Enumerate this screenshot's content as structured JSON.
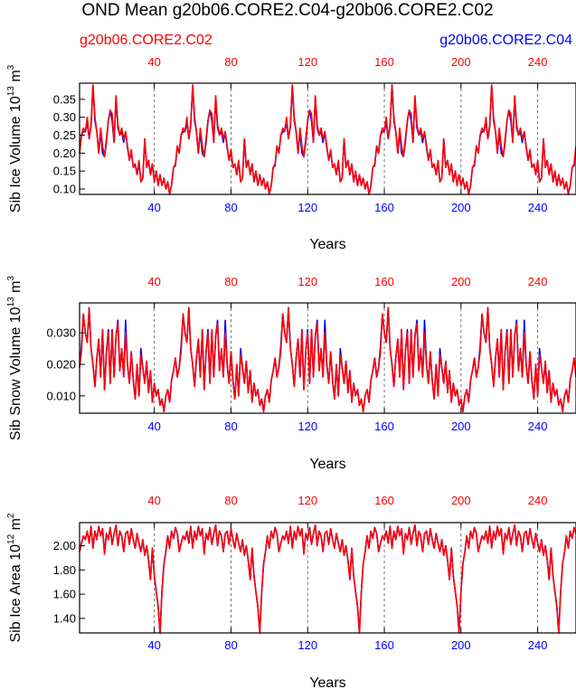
{
  "title": "OND Mean g20b06.CORE2.C04-g20b06.CORE2.C02",
  "legend": {
    "left": {
      "label": "g20b06.CORE2.C02",
      "color": "#ff0000"
    },
    "right": {
      "label": "g20b06.CORE2.C04",
      "color": "#0000ff"
    }
  },
  "chart_data": [
    {
      "type": "line",
      "ylabel_prefix": "Sib Ice Volume 10",
      "ylabel_exp": "13",
      "ylabel_unit": " m",
      "ylabel_unit_exp": "3",
      "xlabel": "Years",
      "xlim": [
        1,
        260
      ],
      "ylim": [
        0.085,
        0.395
      ],
      "yticks": [
        0.1,
        0.15,
        0.2,
        0.25,
        0.3,
        0.35
      ],
      "ytick_labels": [
        "0.10",
        "0.15",
        "0.20",
        "0.25",
        "0.30",
        "0.35"
      ],
      "xticks": [
        40,
        80,
        120,
        160,
        200,
        240
      ],
      "xtick_labels": [
        "40",
        "80",
        "120",
        "160",
        "200",
        "240"
      ],
      "grid_x": "dashed vertical at x ticks",
      "cycle": [
        0.2,
        0.25,
        0.27,
        0.26,
        0.3,
        0.24,
        0.28,
        0.39,
        0.3,
        0.26,
        0.2,
        0.27,
        0.22,
        0.19,
        0.24,
        0.29,
        0.32,
        0.31,
        0.23,
        0.36,
        0.28,
        0.25,
        0.27,
        0.24,
        0.26,
        0.22,
        0.18,
        0.21,
        0.16,
        0.17,
        0.14,
        0.18,
        0.12,
        0.13,
        0.24,
        0.16,
        0.18,
        0.14,
        0.17,
        0.12,
        0.15,
        0.11,
        0.14,
        0.11,
        0.13,
        0.1,
        0.12,
        0.085,
        0.11,
        0.16,
        0.17,
        0.22
      ],
      "offset_cycle": [
        0,
        0,
        -0.01,
        0,
        -0.015,
        0,
        -0.005,
        0,
        -0.01,
        0,
        0,
        -0.01,
        -0.02,
        0,
        -0.01,
        0,
        0,
        -0.02,
        0,
        -0.005,
        -0.01,
        0,
        -0.01,
        -0.01,
        0,
        -0.005,
        0,
        -0.005,
        0,
        0,
        0,
        -0.005,
        0,
        0,
        0,
        0,
        0,
        0,
        0,
        0,
        0,
        0,
        0,
        0,
        0,
        0,
        0,
        0,
        0,
        0,
        -0.005,
        0
      ]
    },
    {
      "type": "line",
      "ylabel_prefix": "Sib Snow Volume 10",
      "ylabel_exp": "13",
      "ylabel_unit": " m",
      "ylabel_unit_exp": "3",
      "xlabel": "Years",
      "xlim": [
        1,
        260
      ],
      "ylim": [
        0.0045,
        0.0395
      ],
      "yticks": [
        0.01,
        0.02,
        0.03
      ],
      "ytick_labels": [
        "0.010",
        "0.020",
        "0.030"
      ],
      "xticks": [
        40,
        80,
        120,
        160,
        200,
        240
      ],
      "xtick_labels": [
        "40",
        "80",
        "120",
        "160",
        "200",
        "240"
      ],
      "grid_x": "dashed vertical at x ticks",
      "cycle": [
        0.019,
        0.024,
        0.036,
        0.03,
        0.027,
        0.038,
        0.025,
        0.02,
        0.013,
        0.022,
        0.028,
        0.016,
        0.031,
        0.012,
        0.024,
        0.03,
        0.014,
        0.031,
        0.016,
        0.029,
        0.033,
        0.018,
        0.025,
        0.016,
        0.03,
        0.02,
        0.014,
        0.024,
        0.015,
        0.009,
        0.02,
        0.01,
        0.023,
        0.019,
        0.014,
        0.021,
        0.011,
        0.018,
        0.008,
        0.014,
        0.01,
        0.012,
        0.007,
        0.009,
        0.005,
        0.01,
        0.012,
        0.008,
        0.015,
        0.018,
        0.022,
        0.016
      ],
      "offset_cycle": [
        0,
        0.002,
        0,
        0,
        0,
        0,
        0,
        0,
        0,
        0,
        0,
        0,
        0,
        0,
        0,
        0.001,
        0,
        0,
        0,
        0,
        0.001,
        0,
        0,
        0,
        0.004,
        0,
        0,
        0,
        0,
        0,
        0,
        0,
        0.002,
        0,
        0,
        0,
        0,
        0,
        0,
        0,
        0,
        0,
        0,
        0,
        0,
        0,
        0,
        0,
        0,
        0,
        0,
        0
      ]
    },
    {
      "type": "line",
      "ylabel_prefix": "Sib Ice Area 10",
      "ylabel_exp": "12",
      "ylabel_unit": " m",
      "ylabel_unit_exp": "2",
      "xlabel": "Years",
      "xlim": [
        1,
        260
      ],
      "ylim": [
        1.28,
        2.19
      ],
      "yticks": [
        1.4,
        1.6,
        1.8,
        2.0
      ],
      "ytick_labels": [
        "1.40",
        "1.60",
        "1.80",
        "2.00"
      ],
      "xticks": [
        40,
        80,
        120,
        160,
        200,
        240
      ],
      "xtick_labels": [
        "40",
        "80",
        "120",
        "160",
        "200",
        "240"
      ],
      "grid_x": "dashed vertical at x ticks",
      "cycle": [
        1.95,
        2.02,
        2.08,
        2.05,
        2.12,
        2.02,
        2.16,
        1.98,
        2.12,
        2.05,
        2.16,
        2.08,
        2.14,
        1.93,
        2.1,
        2.05,
        2.15,
        2.01,
        2.1,
        2.17,
        2.0,
        2.12,
        2.08,
        1.95,
        2.1,
        2.12,
        2.01,
        2.14,
        2.05,
        1.98,
        2.1,
        2.02,
        1.95,
        2.05,
        1.92,
        2.0,
        1.88,
        1.72,
        1.98,
        1.75,
        1.62,
        1.5,
        1.28,
        1.62,
        1.85,
        1.95,
        2.08,
        1.98,
        2.12,
        2.06,
        2.15,
        2.1
      ],
      "offset_cycle": [
        0,
        0,
        0,
        0,
        0,
        0,
        0,
        0,
        0,
        0,
        0,
        0,
        0,
        0.01,
        0,
        0,
        0,
        0,
        0,
        0,
        0,
        0,
        0,
        0,
        0,
        0,
        0,
        0,
        0,
        0,
        0,
        0,
        0,
        0,
        0,
        0,
        0,
        0,
        0,
        0,
        0,
        0,
        0,
        0,
        0,
        0,
        0,
        0,
        0,
        0,
        0,
        0
      ]
    }
  ]
}
